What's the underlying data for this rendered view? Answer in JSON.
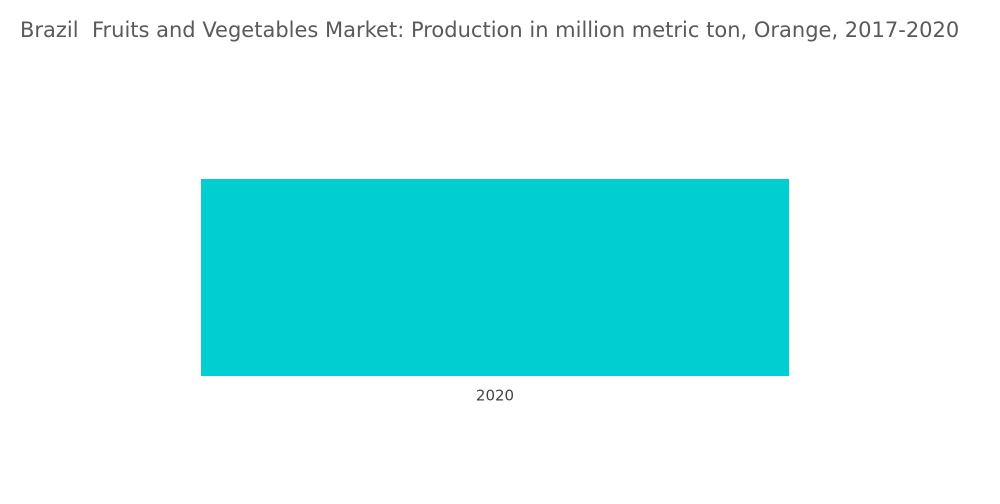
{
  "chart_data": {
    "type": "bar",
    "title": "Brazil  Fruits and Vegetables Market: Production in million metric ton, Orange, 2017-2020",
    "categories": [
      "2020"
    ],
    "values": [
      16.7
    ],
    "color": "#00ced1"
  }
}
